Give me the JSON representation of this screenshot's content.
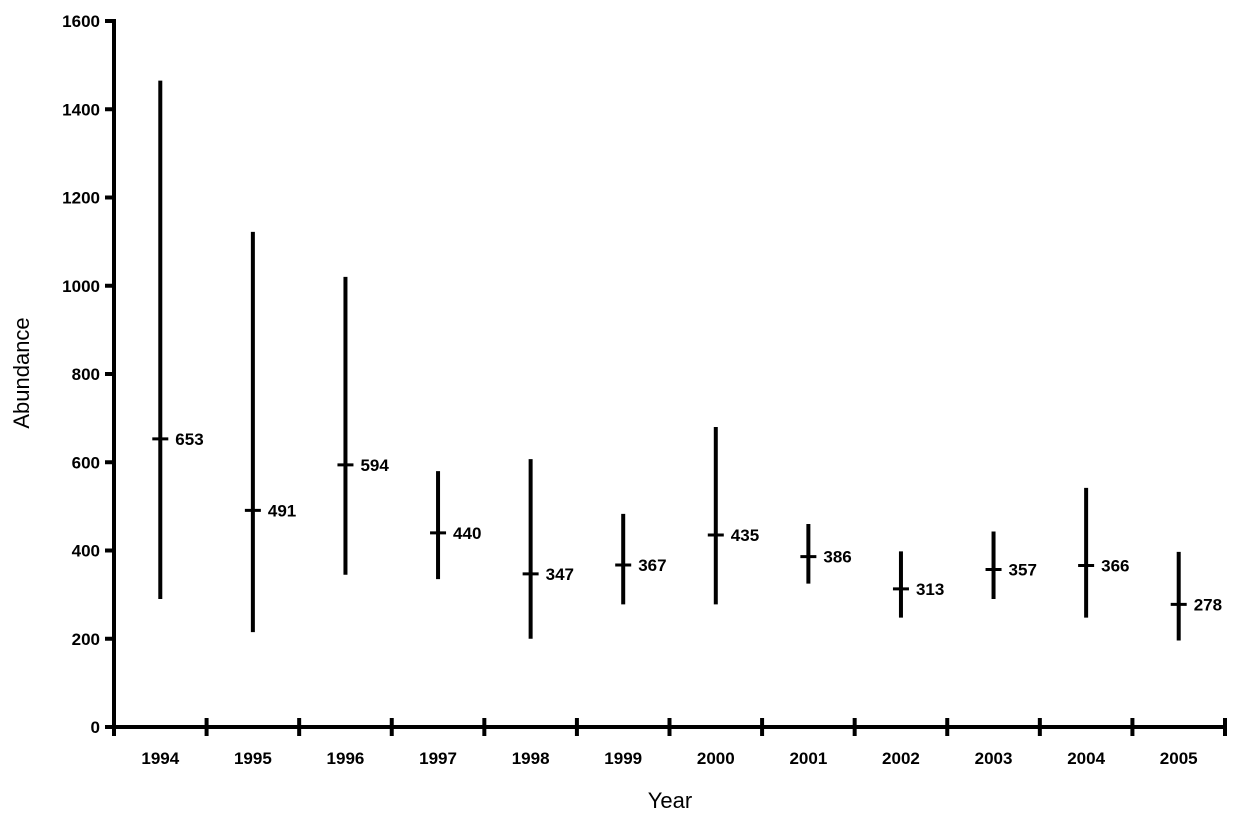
{
  "chart_data": {
    "type": "interval",
    "xlabel": "Year",
    "ylabel": "Abundance",
    "ylim": [
      0,
      1600
    ],
    "yticks": [
      0,
      200,
      400,
      600,
      800,
      1000,
      1200,
      1400,
      1600
    ],
    "categories": [
      "1994",
      "1995",
      "1996",
      "1997",
      "1998",
      "1999",
      "2000",
      "2001",
      "2002",
      "2003",
      "2004",
      "2005"
    ],
    "series": [
      {
        "estimate": [
          653,
          491,
          594,
          440,
          347,
          367,
          435,
          386,
          313,
          357,
          366,
          278
        ],
        "lower": [
          290,
          215,
          345,
          335,
          200,
          278,
          278,
          325,
          248,
          290,
          248,
          196
        ],
        "upper": [
          1465,
          1122,
          1020,
          580,
          607,
          483,
          680,
          460,
          398,
          443,
          542,
          397
        ]
      }
    ],
    "grid": false,
    "legend": "none",
    "colors": {
      "ink": "#000000",
      "background": "#ffffff"
    }
  }
}
